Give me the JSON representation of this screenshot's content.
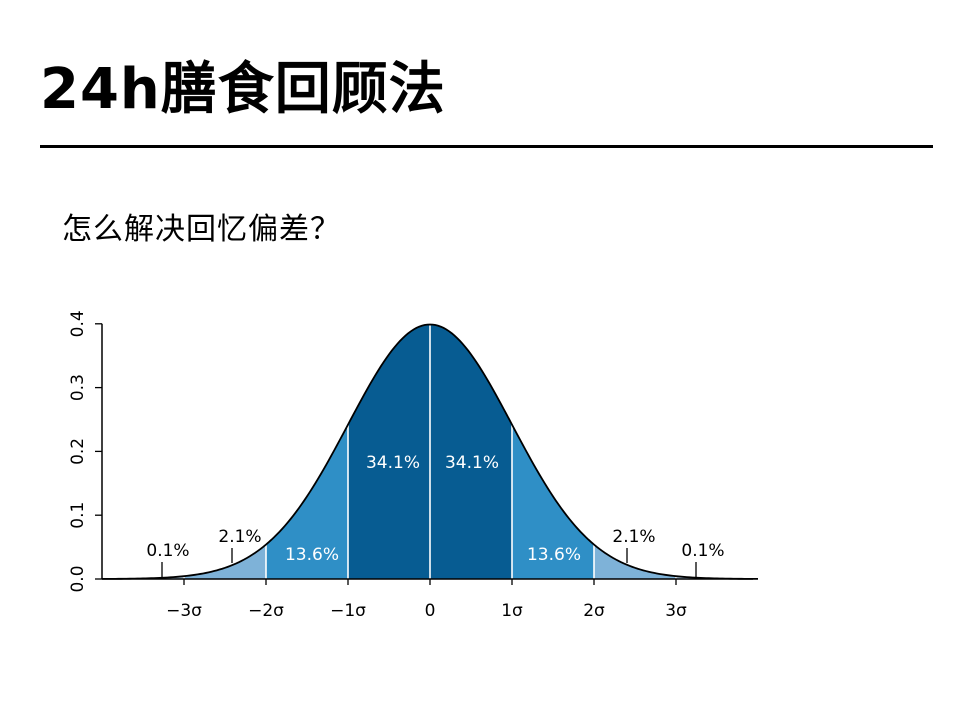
{
  "slide": {
    "title": "24h膳食回顾法",
    "subtitle": "怎么解决回忆偏差？"
  },
  "chart_data": {
    "type": "area",
    "distribution": "standard-normal",
    "xlim": [
      -4,
      4
    ],
    "ylim": [
      0,
      0.4
    ],
    "x_ticks": [
      -3,
      -2,
      -1,
      0,
      1,
      2,
      3
    ],
    "x_tick_labels": [
      "−3σ",
      "−2σ",
      "−1σ",
      "0",
      "1σ",
      "2σ",
      "3σ"
    ],
    "y_ticks": [
      0.0,
      0.1,
      0.2,
      0.3,
      0.4
    ],
    "y_tick_labels": [
      "0.0",
      "0.1",
      "0.2",
      "0.3",
      "0.4"
    ],
    "bands": [
      {
        "from": -3,
        "to": -2,
        "percent": "2.1%",
        "color": "#7eb2d8"
      },
      {
        "from": -2,
        "to": -1,
        "percent": "13.6%",
        "color": "#2f8fc6"
      },
      {
        "from": -1,
        "to": 0,
        "percent": "34.1%",
        "color": "#075c92"
      },
      {
        "from": 0,
        "to": 1,
        "percent": "34.1%",
        "color": "#075c92"
      },
      {
        "from": 1,
        "to": 2,
        "percent": "13.6%",
        "color": "#2f8fc6"
      },
      {
        "from": 2,
        "to": 3,
        "percent": "2.1%",
        "color": "#7eb2d8"
      }
    ],
    "tails": [
      {
        "from": -4,
        "to": -3,
        "percent": "0.1%",
        "color": "#b3d1ea"
      },
      {
        "from": 3,
        "to": 4,
        "percent": "0.1%",
        "color": "#b3d1ea"
      }
    ],
    "annotations": [
      "0.1%",
      "2.1%",
      "13.6%",
      "34.1%",
      "34.1%",
      "13.6%",
      "2.1%",
      "0.1%"
    ],
    "grid": false,
    "legend": "none"
  }
}
